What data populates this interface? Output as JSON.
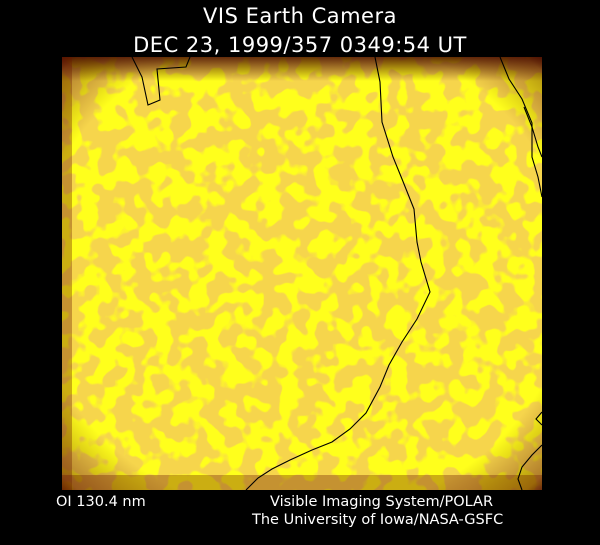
{
  "header": {
    "title": "VIS Earth Camera",
    "timestamp": "DEC 23, 1999/357 0349:54 UT"
  },
  "image": {
    "description_icon": "aurora-image",
    "colors": {
      "base": "#ffff1c",
      "patch": "#e8a018",
      "edge": "#5a1000",
      "coast": "#000000"
    }
  },
  "footer": {
    "filter": "OI  130.4 nm",
    "credit_line1": "Visible Imaging System/POLAR",
    "credit_line2": "The University of Iowa/NASA-GSFC"
  }
}
